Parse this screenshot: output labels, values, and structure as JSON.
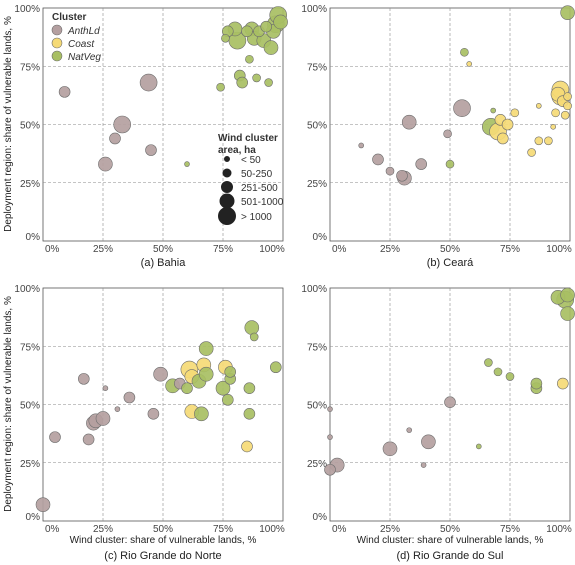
{
  "figure": {
    "y_label": "Deployment region: share of vulnerable lands, %",
    "x_label": "Wind cluster: share of vulnerable lands, %",
    "tick_labels": [
      "0%",
      "25%",
      "50%",
      "75%",
      "100%"
    ]
  },
  "legend": {
    "cluster_title": "Cluster",
    "clusters": [
      {
        "name": "AnthLd",
        "color": "#b49fa0"
      },
      {
        "name": "Coast",
        "color": "#f5da76"
      },
      {
        "name": "NatVeg",
        "color": "#a8bf63"
      }
    ],
    "size_title_line1": "Wind cluster",
    "size_title_line2": "area, ha",
    "sizes": [
      {
        "label": "< 50",
        "r": 2.5
      },
      {
        "label": "50-250",
        "r": 4
      },
      {
        "label": "251-500",
        "r": 5.5
      },
      {
        "label": "501-1000",
        "r": 7
      },
      {
        "label": "> 1000",
        "r": 8.5
      }
    ]
  },
  "chart_data": [
    {
      "type": "scatter",
      "title": "(a) Bahia",
      "xlim": [
        0,
        100
      ],
      "ylim": [
        0,
        100
      ],
      "points": [
        {
          "x": 9,
          "y": 64,
          "c": "AnthLd",
          "s": 2
        },
        {
          "x": 26,
          "y": 33,
          "c": "AnthLd",
          "s": 3
        },
        {
          "x": 30,
          "y": 44,
          "c": "AnthLd",
          "s": 2
        },
        {
          "x": 33,
          "y": 50,
          "c": "AnthLd",
          "s": 4
        },
        {
          "x": 44,
          "y": 68,
          "c": "AnthLd",
          "s": 4
        },
        {
          "x": 45,
          "y": 39,
          "c": "AnthLd",
          "s": 2
        },
        {
          "x": 60,
          "y": 33,
          "c": "NatVeg",
          "s": 0
        },
        {
          "x": 74,
          "y": 66,
          "c": "NatVeg",
          "s": 1
        },
        {
          "x": 76,
          "y": 87,
          "c": "NatVeg",
          "s": 1
        },
        {
          "x": 77,
          "y": 90,
          "c": "NatVeg",
          "s": 2
        },
        {
          "x": 80,
          "y": 91,
          "c": "NatVeg",
          "s": 3
        },
        {
          "x": 81,
          "y": 86,
          "c": "NatVeg",
          "s": 4
        },
        {
          "x": 82,
          "y": 71,
          "c": "NatVeg",
          "s": 2
        },
        {
          "x": 83,
          "y": 68,
          "c": "NatVeg",
          "s": 2
        },
        {
          "x": 85,
          "y": 90,
          "c": "NatVeg",
          "s": 2
        },
        {
          "x": 86,
          "y": 78,
          "c": "NatVeg",
          "s": 1
        },
        {
          "x": 87,
          "y": 91,
          "c": "NatVeg",
          "s": 3
        },
        {
          "x": 88,
          "y": 87,
          "c": "NatVeg",
          "s": 3
        },
        {
          "x": 89,
          "y": 70,
          "c": "NatVeg",
          "s": 1
        },
        {
          "x": 90,
          "y": 90,
          "c": "NatVeg",
          "s": 2
        },
        {
          "x": 92,
          "y": 86,
          "c": "NatVeg",
          "s": 3
        },
        {
          "x": 93,
          "y": 92,
          "c": "NatVeg",
          "s": 2
        },
        {
          "x": 94,
          "y": 68,
          "c": "NatVeg",
          "s": 1
        },
        {
          "x": 95,
          "y": 83,
          "c": "NatVeg",
          "s": 3
        },
        {
          "x": 96,
          "y": 90,
          "c": "NatVeg",
          "s": 3
        },
        {
          "x": 97,
          "y": 93,
          "c": "NatVeg",
          "s": 4
        },
        {
          "x": 98,
          "y": 97,
          "c": "NatVeg",
          "s": 4
        },
        {
          "x": 99,
          "y": 94,
          "c": "NatVeg",
          "s": 3
        }
      ]
    },
    {
      "type": "scatter",
      "title": "(b) Ceará",
      "xlim": [
        0,
        100
      ],
      "ylim": [
        0,
        100
      ],
      "points": [
        {
          "x": 13,
          "y": 41,
          "c": "AnthLd",
          "s": 0
        },
        {
          "x": 20,
          "y": 35,
          "c": "AnthLd",
          "s": 2
        },
        {
          "x": 25,
          "y": 30,
          "c": "AnthLd",
          "s": 1
        },
        {
          "x": 30,
          "y": 28,
          "c": "AnthLd",
          "s": 2
        },
        {
          "x": 31,
          "y": 27,
          "c": "AnthLd",
          "s": 3
        },
        {
          "x": 33,
          "y": 51,
          "c": "AnthLd",
          "s": 3
        },
        {
          "x": 38,
          "y": 33,
          "c": "AnthLd",
          "s": 2
        },
        {
          "x": 49,
          "y": 46,
          "c": "AnthLd",
          "s": 1
        },
        {
          "x": 50,
          "y": 33,
          "c": "NatVeg",
          "s": 1
        },
        {
          "x": 55,
          "y": 57,
          "c": "AnthLd",
          "s": 4
        },
        {
          "x": 56,
          "y": 81,
          "c": "NatVeg",
          "s": 1
        },
        {
          "x": 58,
          "y": 76,
          "c": "Coast",
          "s": 0
        },
        {
          "x": 67,
          "y": 49,
          "c": "NatVeg",
          "s": 4
        },
        {
          "x": 68,
          "y": 56,
          "c": "NatVeg",
          "s": 0
        },
        {
          "x": 70,
          "y": 47,
          "c": "Coast",
          "s": 4
        },
        {
          "x": 71,
          "y": 52,
          "c": "Coast",
          "s": 2
        },
        {
          "x": 72,
          "y": 44,
          "c": "Coast",
          "s": 2
        },
        {
          "x": 74,
          "y": 50,
          "c": "Coast",
          "s": 2
        },
        {
          "x": 77,
          "y": 55,
          "c": "Coast",
          "s": 1
        },
        {
          "x": 84,
          "y": 38,
          "c": "Coast",
          "s": 1
        },
        {
          "x": 87,
          "y": 43,
          "c": "Coast",
          "s": 1
        },
        {
          "x": 87,
          "y": 58,
          "c": "Coast",
          "s": 0
        },
        {
          "x": 91,
          "y": 43,
          "c": "Coast",
          "s": 1
        },
        {
          "x": 93,
          "y": 49,
          "c": "Coast",
          "s": 0
        },
        {
          "x": 94,
          "y": 55,
          "c": "Coast",
          "s": 1
        },
        {
          "x": 95,
          "y": 63,
          "c": "Coast",
          "s": 3
        },
        {
          "x": 96,
          "y": 62,
          "c": "Coast",
          "s": 4
        },
        {
          "x": 96,
          "y": 65,
          "c": "Coast",
          "s": 4
        },
        {
          "x": 97,
          "y": 60,
          "c": "Coast",
          "s": 2
        },
        {
          "x": 98,
          "y": 54,
          "c": "Coast",
          "s": 1
        },
        {
          "x": 99,
          "y": 58,
          "c": "Coast",
          "s": 1
        },
        {
          "x": 99,
          "y": 62,
          "c": "Coast",
          "s": 1
        },
        {
          "x": 99,
          "y": 98,
          "c": "NatVeg",
          "s": 3
        }
      ]
    },
    {
      "type": "scatter",
      "title": "(c) Rio Grande do Norte",
      "xlim": [
        0,
        100
      ],
      "ylim": [
        0,
        100
      ],
      "points": [
        {
          "x": 0,
          "y": 7,
          "c": "AnthLd",
          "s": 3
        },
        {
          "x": 5,
          "y": 36,
          "c": "AnthLd",
          "s": 2
        },
        {
          "x": 17,
          "y": 61,
          "c": "AnthLd",
          "s": 2
        },
        {
          "x": 19,
          "y": 35,
          "c": "AnthLd",
          "s": 2
        },
        {
          "x": 21,
          "y": 42,
          "c": "AnthLd",
          "s": 3
        },
        {
          "x": 22,
          "y": 43,
          "c": "AnthLd",
          "s": 3
        },
        {
          "x": 25,
          "y": 44,
          "c": "AnthLd",
          "s": 3
        },
        {
          "x": 26,
          "y": 57,
          "c": "AnthLd",
          "s": 0
        },
        {
          "x": 31,
          "y": 48,
          "c": "AnthLd",
          "s": 0
        },
        {
          "x": 36,
          "y": 53,
          "c": "AnthLd",
          "s": 2
        },
        {
          "x": 46,
          "y": 46,
          "c": "AnthLd",
          "s": 2
        },
        {
          "x": 49,
          "y": 63,
          "c": "AnthLd",
          "s": 3
        },
        {
          "x": 54,
          "y": 58,
          "c": "NatVeg",
          "s": 3
        },
        {
          "x": 57,
          "y": 59,
          "c": "AnthLd",
          "s": 2
        },
        {
          "x": 60,
          "y": 57,
          "c": "NatVeg",
          "s": 2
        },
        {
          "x": 61,
          "y": 65,
          "c": "Coast",
          "s": 4
        },
        {
          "x": 62,
          "y": 47,
          "c": "Coast",
          "s": 3
        },
        {
          "x": 62,
          "y": 62,
          "c": "Coast",
          "s": 3
        },
        {
          "x": 65,
          "y": 60,
          "c": "NatVeg",
          "s": 3
        },
        {
          "x": 66,
          "y": 46,
          "c": "NatVeg",
          "s": 3
        },
        {
          "x": 67,
          "y": 67,
          "c": "Coast",
          "s": 3
        },
        {
          "x": 68,
          "y": 74,
          "c": "NatVeg",
          "s": 3
        },
        {
          "x": 68,
          "y": 63,
          "c": "NatVeg",
          "s": 3
        },
        {
          "x": 75,
          "y": 57,
          "c": "NatVeg",
          "s": 3
        },
        {
          "x": 76,
          "y": 66,
          "c": "Coast",
          "s": 3
        },
        {
          "x": 77,
          "y": 52,
          "c": "NatVeg",
          "s": 2
        },
        {
          "x": 78,
          "y": 61,
          "c": "NatVeg",
          "s": 2
        },
        {
          "x": 78,
          "y": 64,
          "c": "NatVeg",
          "s": 2
        },
        {
          "x": 85,
          "y": 32,
          "c": "Coast",
          "s": 2
        },
        {
          "x": 86,
          "y": 46,
          "c": "NatVeg",
          "s": 2
        },
        {
          "x": 86,
          "y": 57,
          "c": "NatVeg",
          "s": 2
        },
        {
          "x": 87,
          "y": 83,
          "c": "NatVeg",
          "s": 3
        },
        {
          "x": 88,
          "y": 79,
          "c": "NatVeg",
          "s": 1
        },
        {
          "x": 97,
          "y": 66,
          "c": "NatVeg",
          "s": 2
        }
      ]
    },
    {
      "type": "scatter",
      "title": "(d) Rio Grande do Sul",
      "xlim": [
        0,
        100
      ],
      "ylim": [
        0,
        100
      ],
      "points": [
        {
          "x": 0,
          "y": 48,
          "c": "AnthLd",
          "s": 0
        },
        {
          "x": 0,
          "y": 36,
          "c": "AnthLd",
          "s": 0
        },
        {
          "x": 0,
          "y": 22,
          "c": "AnthLd",
          "s": 2
        },
        {
          "x": 3,
          "y": 24,
          "c": "AnthLd",
          "s": 3
        },
        {
          "x": 25,
          "y": 31,
          "c": "AnthLd",
          "s": 3
        },
        {
          "x": 33,
          "y": 39,
          "c": "AnthLd",
          "s": 0
        },
        {
          "x": 39,
          "y": 24,
          "c": "AnthLd",
          "s": 0
        },
        {
          "x": 41,
          "y": 34,
          "c": "AnthLd",
          "s": 3
        },
        {
          "x": 50,
          "y": 51,
          "c": "AnthLd",
          "s": 2
        },
        {
          "x": 62,
          "y": 32,
          "c": "NatVeg",
          "s": 0
        },
        {
          "x": 66,
          "y": 68,
          "c": "NatVeg",
          "s": 1
        },
        {
          "x": 70,
          "y": 64,
          "c": "NatVeg",
          "s": 1
        },
        {
          "x": 75,
          "y": 62,
          "c": "NatVeg",
          "s": 1
        },
        {
          "x": 86,
          "y": 57,
          "c": "NatVeg",
          "s": 2
        },
        {
          "x": 86,
          "y": 59,
          "c": "NatVeg",
          "s": 2
        },
        {
          "x": 95,
          "y": 96,
          "c": "NatVeg",
          "s": 3
        },
        {
          "x": 97,
          "y": 59,
          "c": "Coast",
          "s": 2
        },
        {
          "x": 98,
          "y": 95,
          "c": "NatVeg",
          "s": 4
        },
        {
          "x": 99,
          "y": 97,
          "c": "NatVeg",
          "s": 3
        },
        {
          "x": 99,
          "y": 89,
          "c": "NatVeg",
          "s": 3
        }
      ]
    }
  ]
}
